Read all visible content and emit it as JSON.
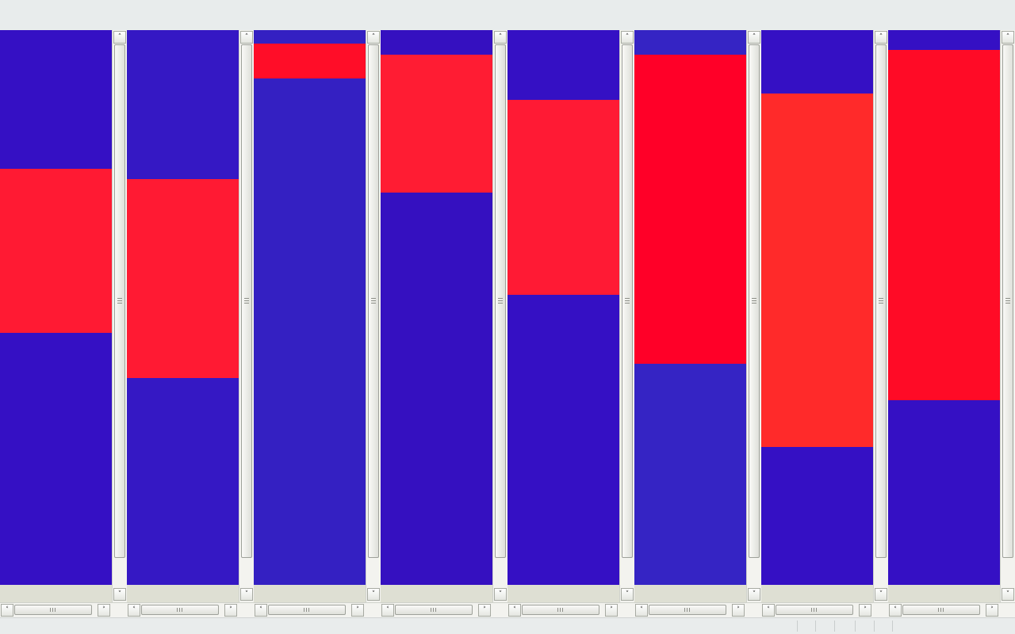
{
  "window": {
    "pane_count": 8
  },
  "colors": {
    "blue": "#3510c4",
    "red": "#ff1a33"
  },
  "icons": {
    "scroll_up": "arrow-up-icon",
    "scroll_down": "arrow-down-icon",
    "scroll_left": "arrow-left-icon",
    "scroll_right": "arrow-right-icon",
    "grip": "grip-icon"
  },
  "panes": [
    {
      "blue_color": "#3510c4",
      "red_color": "#ff1a33",
      "red_start": 0.25,
      "red_end": 0.546
    },
    {
      "blue_color": "#3518c4",
      "red_color": "#ff1a33",
      "red_start": 0.269,
      "red_end": 0.627
    },
    {
      "blue_color": "#3420c2",
      "red_color": "#ff0d28",
      "red_start": 0.024,
      "red_end": 0.087
    },
    {
      "blue_color": "#3510c0",
      "red_color": "#ff1c33",
      "red_start": 0.044,
      "red_end": 0.293
    },
    {
      "blue_color": "#3510c4",
      "red_color": "#ff1a34",
      "red_start": 0.126,
      "red_end": 0.477
    },
    {
      "blue_color": "#3524c4",
      "red_color": "#ff0028",
      "red_start": 0.044,
      "red_end": 0.601
    },
    {
      "blue_color": "#3510c4",
      "red_color": "#ff2a2a",
      "red_start": 0.114,
      "red_end": 0.751
    },
    {
      "blue_color": "#3510c4",
      "red_color": "#ff0b26",
      "red_start": 0.036,
      "red_end": 0.667
    }
  ]
}
